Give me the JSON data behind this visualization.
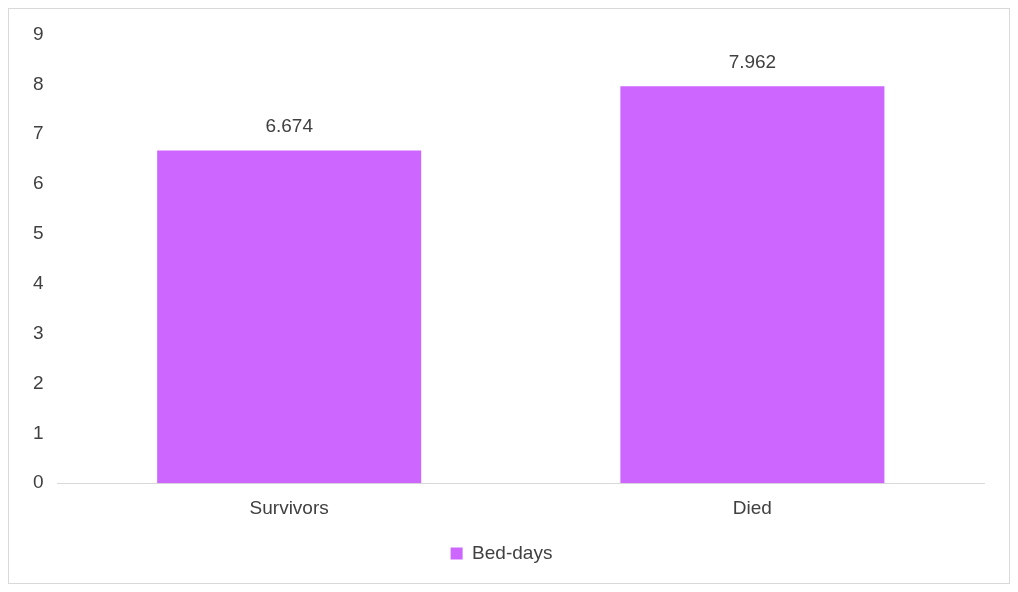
{
  "chart_data": {
    "type": "bar",
    "categories": [
      "Survivors",
      "Died"
    ],
    "series": [
      {
        "name": "Bed-days",
        "color": "#cc66ff",
        "values": [
          6.674,
          7.962
        ]
      }
    ],
    "ylim": [
      0,
      9
    ],
    "yticks": [
      0,
      1,
      2,
      3,
      4,
      5,
      6,
      7,
      8,
      9
    ],
    "data_labels": true,
    "grid": false,
    "legend": "bottom"
  }
}
